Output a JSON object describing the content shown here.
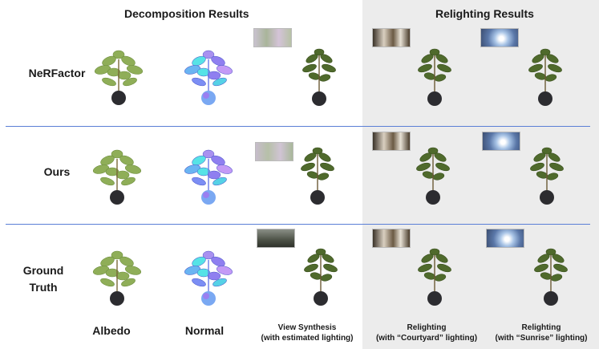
{
  "headings": {
    "decomposition": "Decomposition Results",
    "relighting": "Relighting Results"
  },
  "rows": [
    {
      "label": "NeRFactor"
    },
    {
      "label": "Ours"
    },
    {
      "label": "Ground\nTruth"
    }
  ],
  "columns": {
    "albedo": "Albedo",
    "normal": "Normal",
    "view_synthesis": "View Synthesis\n(with estimated lighting)",
    "relight_courtyard": "Relighting\n(with “Courtyard” lighting)",
    "relight_sunrise": "Relighting\n(with “Sunrise” lighting)"
  },
  "colors": {
    "divider": "#5b7fd6",
    "relight_panel_bg": "#ececec",
    "albedo_leaf": "#8fae58",
    "normal_leaf_a": "#8f7ff0",
    "normal_leaf_b": "#56e3e6",
    "render_leaf": "#4f6a2c",
    "pot": "#2c2c30"
  },
  "icons": {
    "envmap": "environment-map-thumbnail",
    "plant": "potted-plant-render"
  }
}
